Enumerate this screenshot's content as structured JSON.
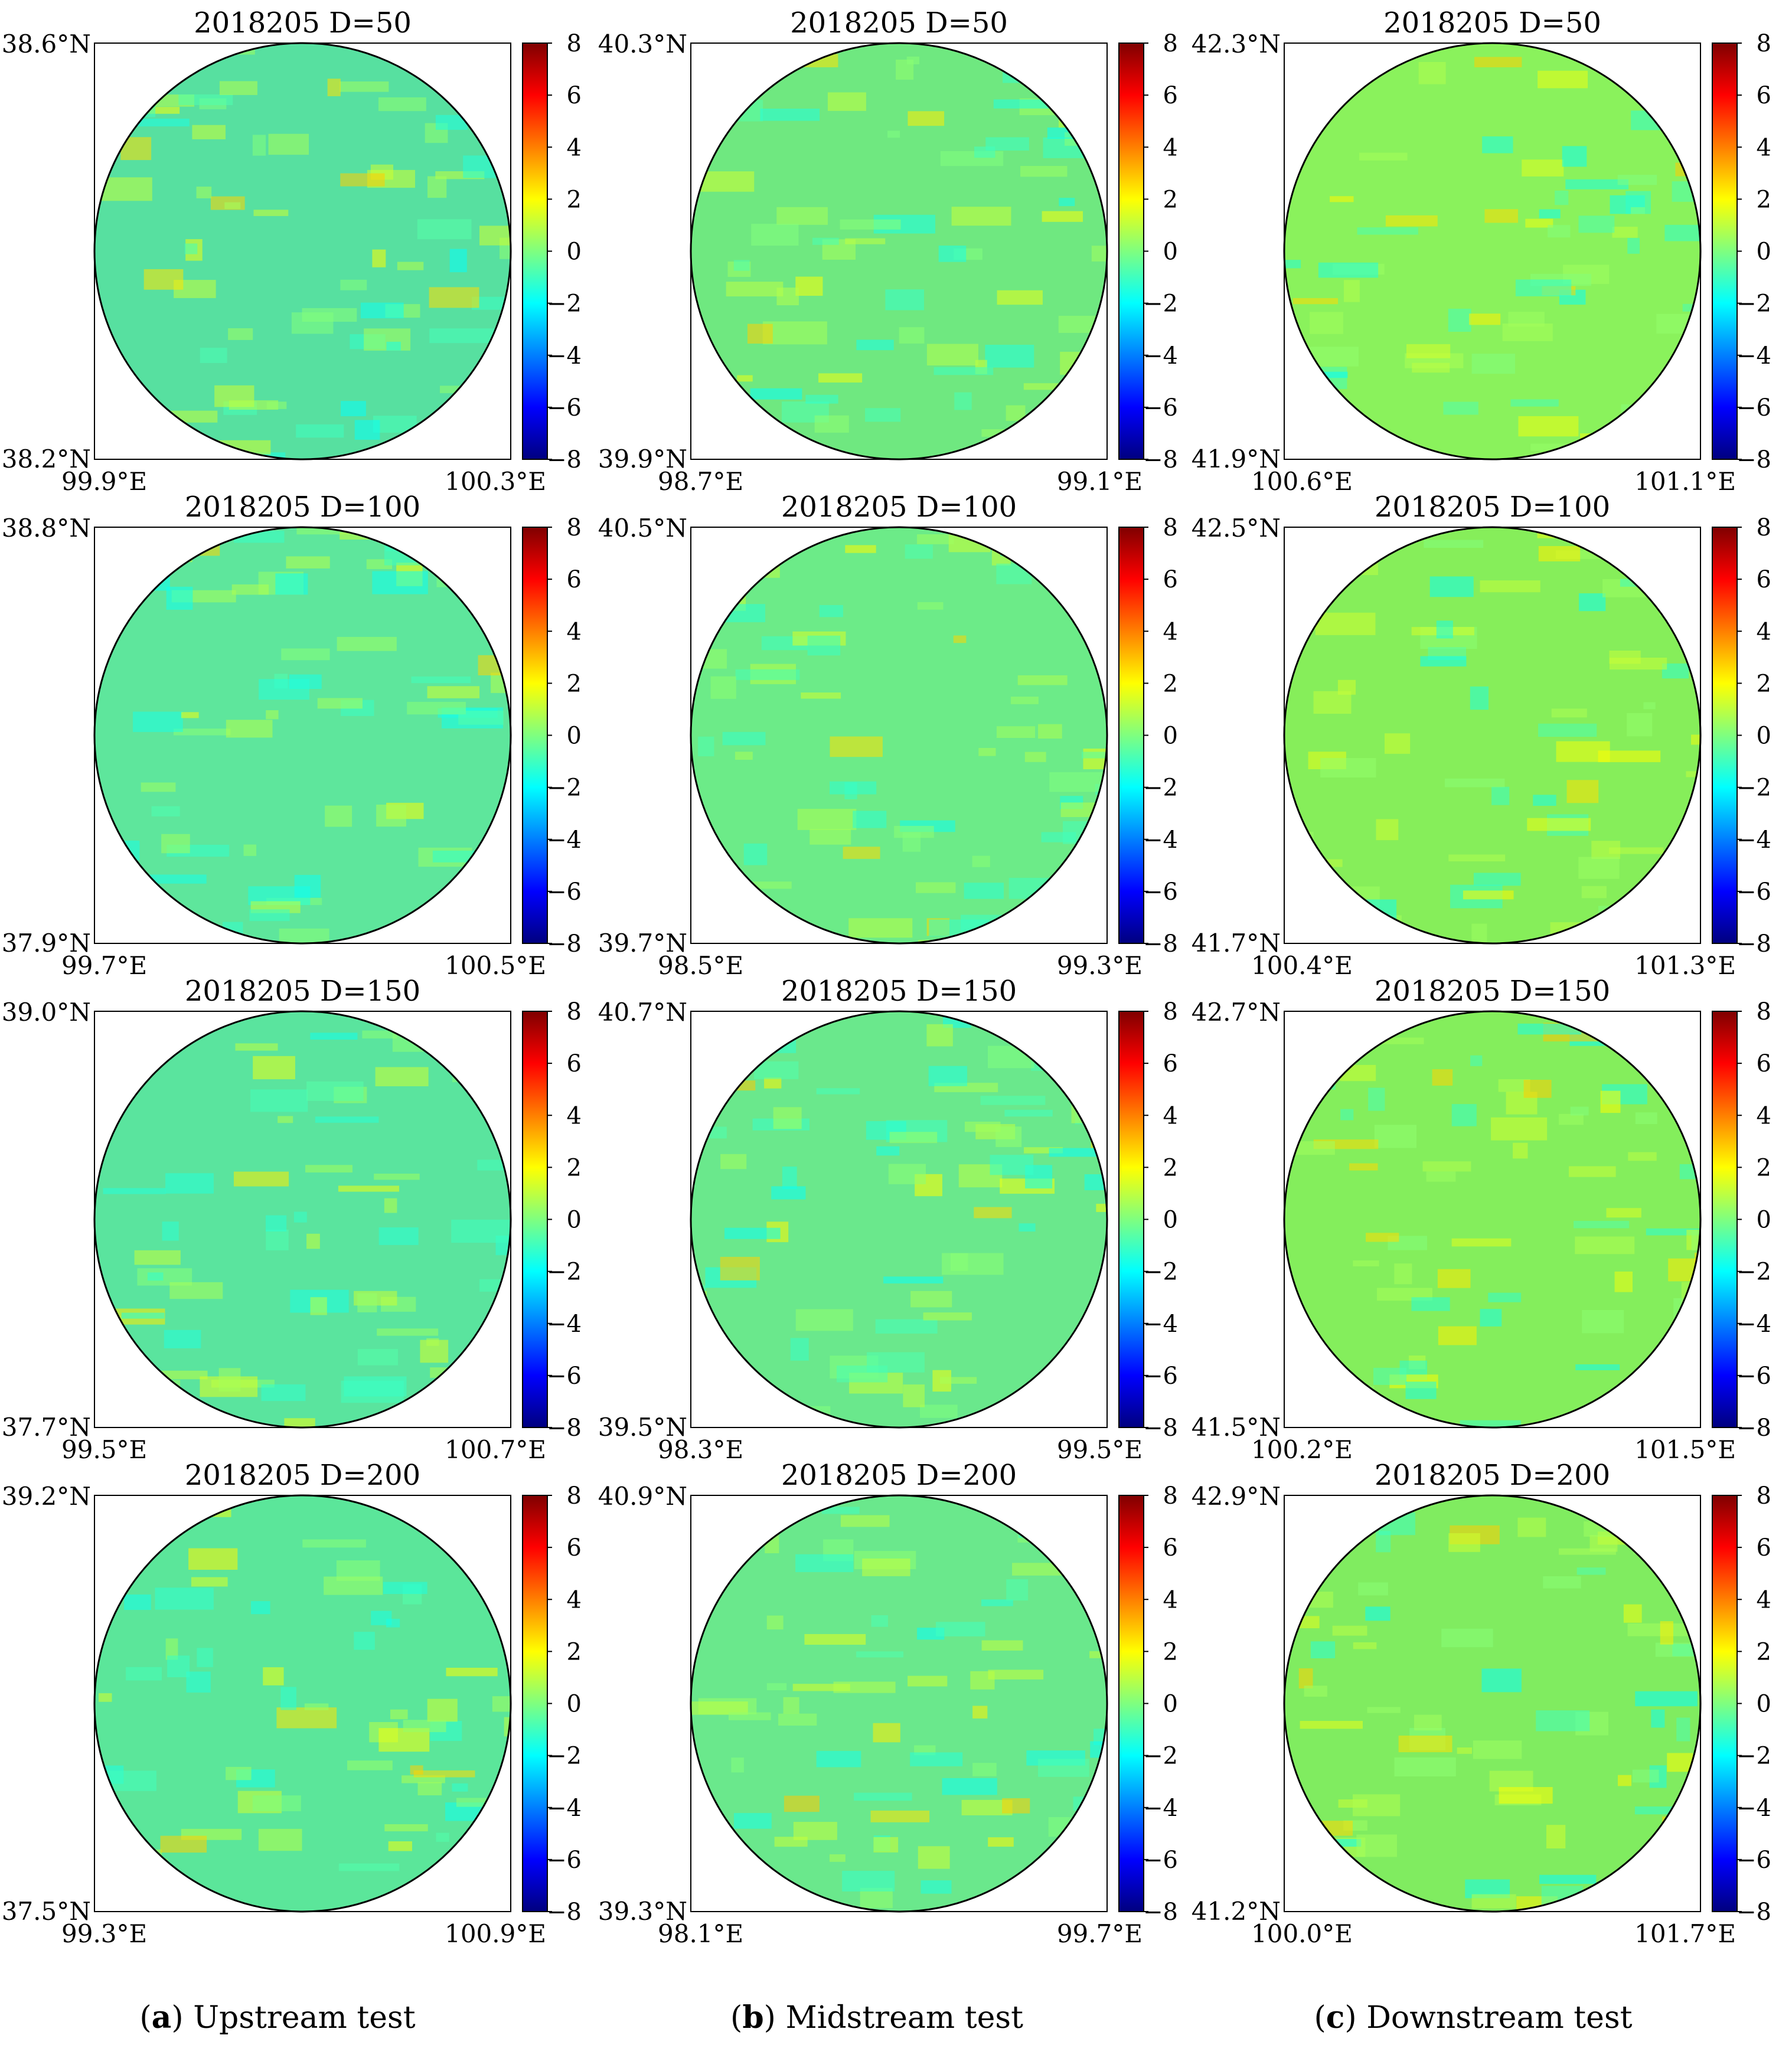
{
  "colorbar": {
    "colors": [
      "#00007f",
      "#0000ff",
      "#007fff",
      "#00ffff",
      "#7fff7f",
      "#ffff00",
      "#ff7f00",
      "#ff0000",
      "#7f0000"
    ],
    "ticks": [
      "8",
      "6",
      "4",
      "2",
      "0",
      "−2",
      "−4",
      "−6",
      "−8"
    ],
    "min": -8,
    "max": 8
  },
  "captions": [
    {
      "letter": "a",
      "text": "Upstream test"
    },
    {
      "letter": "b",
      "text": "Midstream test"
    },
    {
      "letter": "c",
      "text": "Downstream test"
    }
  ],
  "chart_data": [
    {
      "type": "heatmap",
      "title": "2018205 D=50",
      "lat_top": "38.6°N",
      "lat_bottom": "38.2°N",
      "lon_left": "99.9°E",
      "lon_right": "100.3°E",
      "mask": "circle",
      "dominant_color": "#57e0a0"
    },
    {
      "type": "heatmap",
      "title": "2018205 D=50",
      "lat_top": "40.3°N",
      "lat_bottom": "39.9°N",
      "lon_left": "98.7°E",
      "lon_right": "99.1°E",
      "mask": "circle",
      "dominant_color": "#6fe880"
    },
    {
      "type": "heatmap",
      "title": "2018205 D=50",
      "lat_top": "42.3°N",
      "lat_bottom": "41.9°N",
      "lon_left": "100.6°E",
      "lon_right": "101.1°E",
      "mask": "circle",
      "dominant_color": "#8af25c"
    },
    {
      "type": "heatmap",
      "title": "2018205 D=100",
      "lat_top": "38.8°N",
      "lat_bottom": "37.9°N",
      "lon_left": "99.7°E",
      "lon_right": "100.5°E",
      "mask": "circle",
      "dominant_color": "#5ee69c"
    },
    {
      "type": "heatmap",
      "title": "2018205 D=100",
      "lat_top": "40.5°N",
      "lat_bottom": "39.7°N",
      "lon_left": "98.5°E",
      "lon_right": "99.3°E",
      "mask": "circle",
      "dominant_color": "#6ceb88"
    },
    {
      "type": "heatmap",
      "title": "2018205 D=100",
      "lat_top": "42.5°N",
      "lat_bottom": "41.7°N",
      "lon_left": "100.4°E",
      "lon_right": "101.3°E",
      "mask": "circle",
      "dominant_color": "#86ee5a"
    },
    {
      "type": "heatmap",
      "title": "2018205 D=150",
      "lat_top": "39.0°N",
      "lat_bottom": "37.7°N",
      "lon_left": "99.5°E",
      "lon_right": "100.7°E",
      "mask": "circle",
      "dominant_color": "#5ae49e"
    },
    {
      "type": "heatmap",
      "title": "2018205 D=150",
      "lat_top": "40.7°N",
      "lat_bottom": "39.5°N",
      "lon_left": "98.3°E",
      "lon_right": "99.5°E",
      "mask": "circle",
      "dominant_color": "#6ae88c"
    },
    {
      "type": "heatmap",
      "title": "2018205 D=150",
      "lat_top": "42.7°N",
      "lat_bottom": "41.5°N",
      "lon_left": "100.2°E",
      "lon_right": "101.5°E",
      "mask": "circle",
      "dominant_color": "#84ee5c"
    },
    {
      "type": "heatmap",
      "title": "2018205 D=200",
      "lat_top": "39.2°N",
      "lat_bottom": "37.5°N",
      "lon_left": "99.3°E",
      "lon_right": "100.9°E",
      "mask": "circle",
      "dominant_color": "#5be69a"
    },
    {
      "type": "heatmap",
      "title": "2018205 D=200",
      "lat_top": "40.9°N",
      "lat_bottom": "39.3°N",
      "lon_left": "98.1°E",
      "lon_right": "99.7°E",
      "mask": "circle",
      "dominant_color": "#6ae88c"
    },
    {
      "type": "heatmap",
      "title": "2018205 D=200",
      "lat_top": "42.9°N",
      "lat_bottom": "41.2°N",
      "lon_left": "100.0°E",
      "lon_right": "101.7°E",
      "mask": "circle",
      "dominant_color": "#80ec60"
    }
  ]
}
